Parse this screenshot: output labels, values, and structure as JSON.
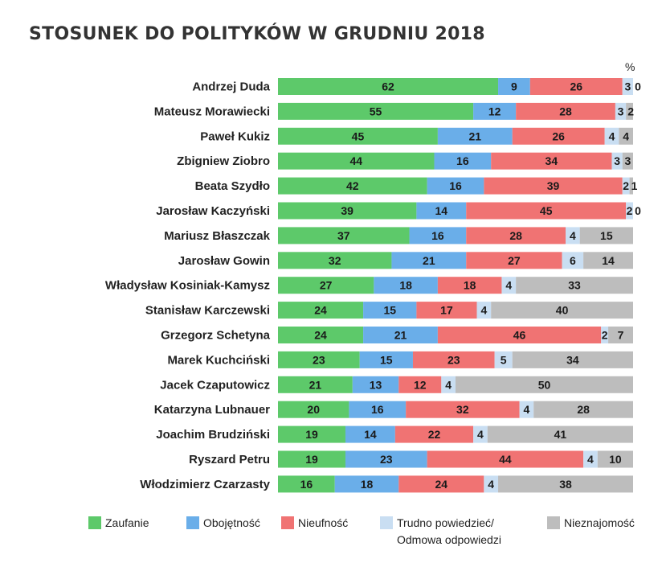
{
  "title": "STOSUNEK DO POLITYKÓW  W GRUDNIU 2018",
  "unit_label": "%",
  "colors": {
    "Zaufanie": "#5dc96a",
    "Obojętność": "#6aaee9",
    "Nieufność": "#f07373",
    "Trudno": "#c9def2",
    "Nieznajomość": "#bdbdbd"
  },
  "legend": [
    {
      "key": "Zaufanie",
      "lines": [
        "Zaufanie"
      ]
    },
    {
      "key": "Obojętność",
      "lines": [
        "Obojętność"
      ]
    },
    {
      "key": "Nieufność",
      "lines": [
        "Nieufność"
      ]
    },
    {
      "key": "Trudno",
      "lines": [
        "Trudno powiedzieć/",
        "Odmowa odpowiedzi"
      ]
    },
    {
      "key": "Nieznajomość",
      "lines": [
        "Nieznajomość"
      ]
    }
  ],
  "chart_data": {
    "type": "bar",
    "orientation": "horizontal",
    "stacked": true,
    "title": "STOSUNEK DO POLITYKÓW  W GRUDNIU 2018",
    "unit": "%",
    "categories": [
      "Andrzej Duda",
      "Mateusz Morawiecki",
      "Paweł Kukiz",
      "Zbigniew Ziobro",
      "Beata Szydło",
      "Jarosław Kaczyński",
      "Mariusz Błaszczak",
      "Jarosław Gowin",
      "Władysław Kosiniak-Kamysz",
      "Stanisław Karczewski",
      "Grzegorz Schetyna",
      "Marek Kuchciński",
      "Jacek Czaputowicz",
      "Katarzyna Lubnauer",
      "Joachim Brudziński",
      "Ryszard Petru",
      "Włodzimierz Czarzasty"
    ],
    "series": [
      {
        "name": "Zaufanie",
        "values": [
          62,
          55,
          45,
          44,
          42,
          39,
          37,
          32,
          27,
          24,
          24,
          23,
          21,
          20,
          19,
          19,
          16
        ]
      },
      {
        "name": "Obojętność",
        "values": [
          9,
          12,
          21,
          16,
          16,
          14,
          16,
          21,
          18,
          15,
          21,
          15,
          13,
          16,
          14,
          23,
          18
        ]
      },
      {
        "name": "Nieufność",
        "values": [
          26,
          28,
          26,
          34,
          39,
          45,
          28,
          27,
          18,
          17,
          46,
          23,
          12,
          32,
          22,
          44,
          24
        ]
      },
      {
        "name": "Trudno powiedzieć/ Odmowa odpowiedzi",
        "values": [
          3,
          3,
          4,
          3,
          2,
          2,
          4,
          6,
          4,
          4,
          2,
          5,
          4,
          4,
          4,
          4,
          4
        ]
      },
      {
        "name": "Nieznajomość",
        "values": [
          0,
          2,
          4,
          3,
          1,
          0,
          15,
          14,
          33,
          40,
          7,
          34,
          50,
          28,
          41,
          10,
          38
        ]
      }
    ],
    "xlim": [
      0,
      100
    ],
    "legend_position": "bottom"
  }
}
